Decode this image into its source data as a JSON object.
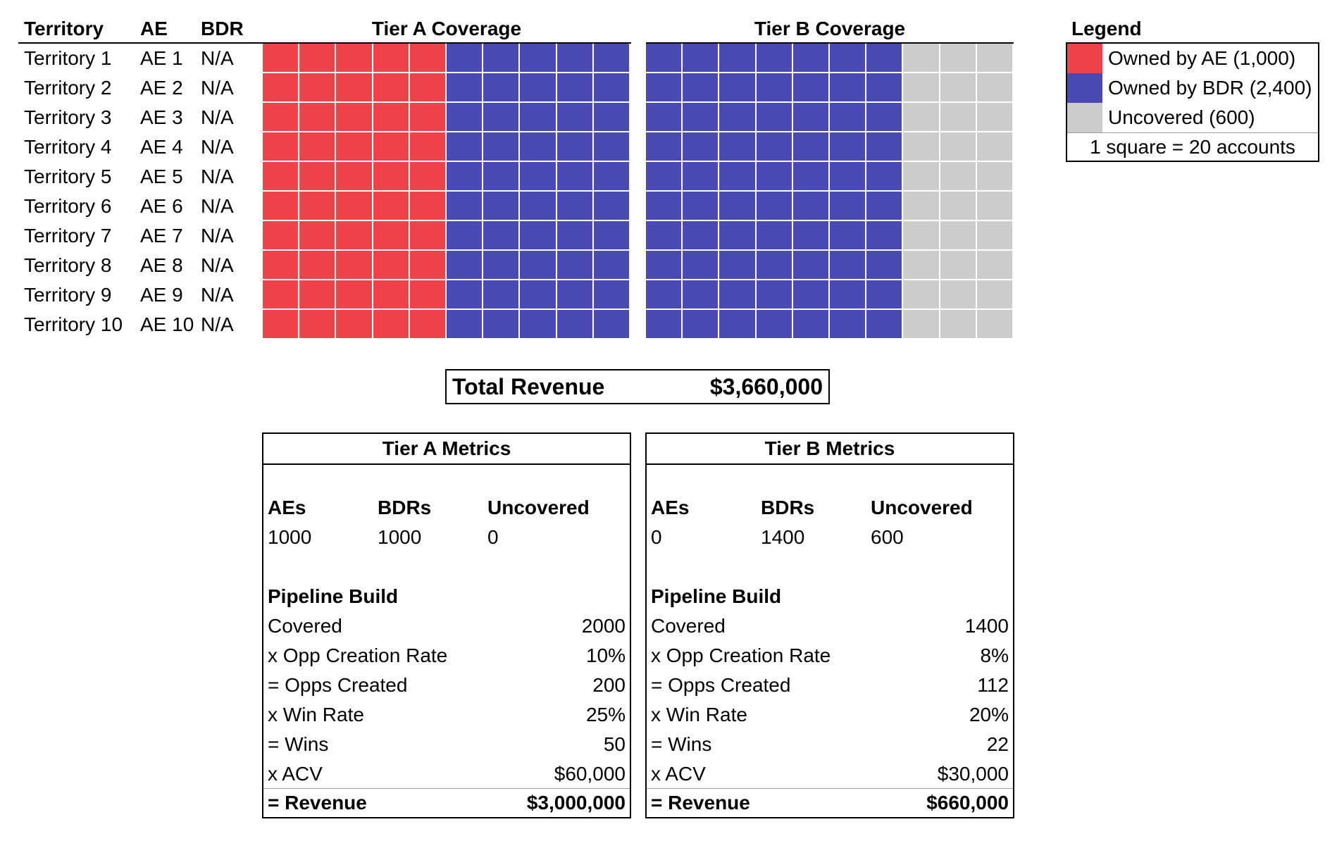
{
  "colors": {
    "ae": "#ef4349",
    "bdr": "#4a4ab4",
    "uncovered": "#cccccc"
  },
  "table": {
    "headers": {
      "territory": "Territory",
      "ae": "AE",
      "bdr": "BDR",
      "tier_a": "Tier A Coverage",
      "tier_b": "Tier B Coverage"
    },
    "rows": [
      {
        "territory": "Territory 1",
        "ae": "AE 1",
        "bdr": "N/A"
      },
      {
        "territory": "Territory 2",
        "ae": "AE 2",
        "bdr": "N/A"
      },
      {
        "territory": "Territory 3",
        "ae": "AE 3",
        "bdr": "N/A"
      },
      {
        "territory": "Territory 4",
        "ae": "AE 4",
        "bdr": "N/A"
      },
      {
        "territory": "Territory 5",
        "ae": "AE 5",
        "bdr": "N/A"
      },
      {
        "territory": "Territory 6",
        "ae": "AE 6",
        "bdr": "N/A"
      },
      {
        "territory": "Territory 7",
        "ae": "AE 7",
        "bdr": "N/A"
      },
      {
        "territory": "Territory 8",
        "ae": "AE 8",
        "bdr": "N/A"
      },
      {
        "territory": "Territory 9",
        "ae": "AE 9",
        "bdr": "N/A"
      },
      {
        "territory": "Territory 10",
        "ae": "AE 10",
        "bdr": "N/A"
      }
    ],
    "tier_a_squares_per_row": {
      "ae": 5,
      "bdr": 5,
      "uncovered": 0
    },
    "tier_b_squares_per_row": {
      "ae": 0,
      "bdr": 7,
      "uncovered": 3
    }
  },
  "legend": {
    "title": "Legend",
    "items": [
      {
        "key": "ae",
        "label": "Owned by AE (1,000)"
      },
      {
        "key": "bdr",
        "label": "Owned by BDR (2,400)"
      },
      {
        "key": "uncovered",
        "label": "Uncovered (600)"
      }
    ],
    "note": "1 square = 20 accounts"
  },
  "total": {
    "label": "Total Revenue",
    "value": "$3,660,000"
  },
  "tier_a": {
    "title": "Tier A Metrics",
    "cols": {
      "aes": "AEs",
      "bdrs": "BDRs",
      "uncovered": "Uncovered"
    },
    "values": {
      "aes": "1000",
      "bdrs": "1000",
      "uncovered": "0"
    },
    "pipeline_title": "Pipeline Build",
    "lines": [
      {
        "label": "Covered",
        "value": "2000"
      },
      {
        "label": "x Opp Creation Rate",
        "value": "10%"
      },
      {
        "label": "= Opps Created",
        "value": "200"
      },
      {
        "label": "x Win Rate",
        "value": "25%"
      },
      {
        "label": "= Wins",
        "value": "50"
      },
      {
        "label": "x ACV",
        "value": "$60,000"
      }
    ],
    "revenue": {
      "label": "= Revenue",
      "value": "$3,000,000"
    }
  },
  "tier_b": {
    "title": "Tier B Metrics",
    "cols": {
      "aes": "AEs",
      "bdrs": "BDRs",
      "uncovered": "Uncovered"
    },
    "values": {
      "aes": "0",
      "bdrs": "1400",
      "uncovered": "600"
    },
    "pipeline_title": "Pipeline Build",
    "lines": [
      {
        "label": "Covered",
        "value": "1400"
      },
      {
        "label": "x Opp Creation Rate",
        "value": "8%"
      },
      {
        "label": "= Opps Created",
        "value": "112"
      },
      {
        "label": "x Win Rate",
        "value": "20%"
      },
      {
        "label": "= Wins",
        "value": "22"
      },
      {
        "label": "x ACV",
        "value": "$30,000"
      }
    ],
    "revenue": {
      "label": "= Revenue",
      "value": "$660,000"
    }
  }
}
